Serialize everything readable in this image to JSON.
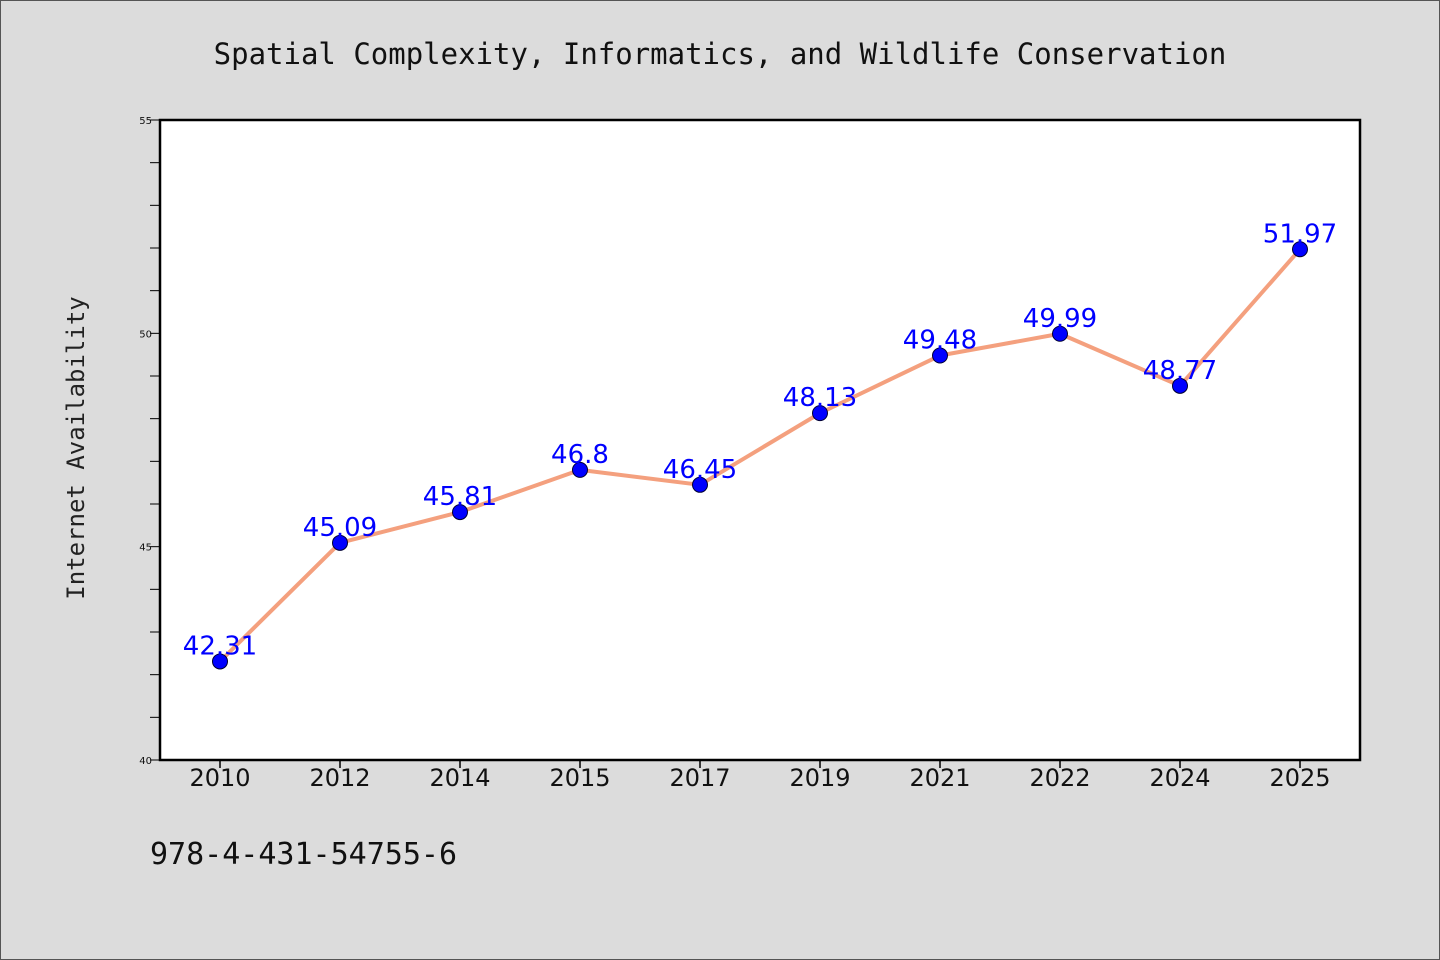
{
  "chart_data": {
    "type": "line",
    "title": "Spatial Complexity, Informatics, and Wildlife Conservation",
    "ylabel": "Internet Availability",
    "xlabel": "",
    "categories": [
      "2010",
      "2012",
      "2014",
      "2015",
      "2017",
      "2019",
      "2021",
      "2022",
      "2024",
      "2025"
    ],
    "values": [
      42.31,
      45.09,
      45.81,
      46.8,
      46.45,
      48.13,
      49.48,
      49.99,
      48.77,
      51.97
    ],
    "data_labels": [
      "42.31",
      "45.09",
      "45.81",
      "46.8",
      "46.45",
      "48.13",
      "49.48",
      "49.99",
      "48.77",
      "51.97"
    ],
    "ylim": [
      40,
      55
    ],
    "yticks": [
      "40",
      "45",
      "50",
      "55"
    ],
    "grid": false,
    "line_color": "#f4a07e",
    "marker_color": "#0000ff",
    "label_color": "#0000ff"
  },
  "footnote": "978-4-431-54755-6"
}
